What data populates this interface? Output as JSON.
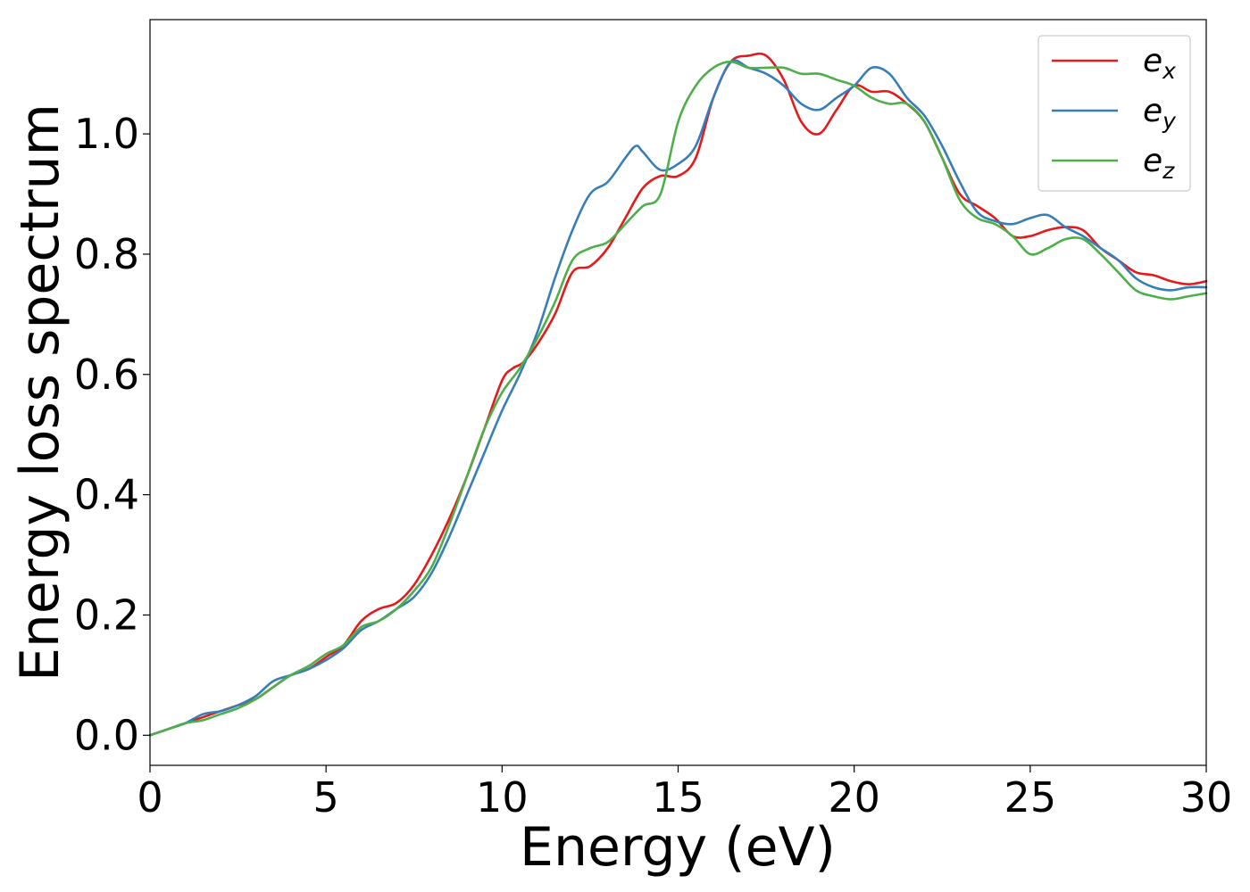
{
  "chart_data": {
    "type": "line",
    "title": "",
    "xlabel": "Energy (eV)",
    "ylabel": "Energy loss spectrum",
    "xlim": [
      0,
      30
    ],
    "ylim": [
      -0.05,
      1.19
    ],
    "xticks": [
      0,
      5,
      10,
      15,
      20,
      25,
      30
    ],
    "xtick_labels": [
      "0",
      "5",
      "10",
      "15",
      "20",
      "25",
      "30"
    ],
    "yticks": [
      0.0,
      0.2,
      0.4,
      0.6,
      0.8,
      1.0
    ],
    "ytick_labels": [
      "0.0",
      "0.2",
      "0.4",
      "0.6",
      "0.8",
      "1.0"
    ],
    "grid": false,
    "legend_position": "upper-right",
    "series": [
      {
        "name": "e_x",
        "legend_base": "e",
        "legend_sub": "x",
        "color": "#e41a1c",
        "x": [
          0,
          0.5,
          1,
          1.5,
          2,
          2.5,
          3,
          3.5,
          4,
          4.5,
          5,
          5.5,
          6,
          6.5,
          7,
          7.5,
          8,
          8.5,
          9,
          9.5,
          10,
          10.3,
          10.6,
          11,
          11.5,
          12,
          12.5,
          13,
          13.5,
          14,
          14.5,
          15,
          15.5,
          16,
          16.5,
          17,
          17.5,
          18,
          18.5,
          19,
          19.5,
          20,
          20.5,
          21,
          21.5,
          22,
          22.5,
          23,
          23.5,
          24,
          24.5,
          25,
          25.5,
          26,
          26.5,
          27,
          27.5,
          28,
          28.5,
          29,
          29.5,
          30
        ],
        "y": [
          0.0,
          0.01,
          0.02,
          0.03,
          0.04,
          0.05,
          0.06,
          0.08,
          0.1,
          0.11,
          0.13,
          0.15,
          0.19,
          0.21,
          0.22,
          0.25,
          0.3,
          0.36,
          0.43,
          0.51,
          0.59,
          0.61,
          0.62,
          0.65,
          0.7,
          0.77,
          0.78,
          0.81,
          0.86,
          0.91,
          0.93,
          0.93,
          0.96,
          1.06,
          1.12,
          1.13,
          1.13,
          1.09,
          1.02,
          1.0,
          1.04,
          1.08,
          1.07,
          1.07,
          1.05,
          1.02,
          0.96,
          0.9,
          0.88,
          0.86,
          0.83,
          0.83,
          0.84,
          0.845,
          0.84,
          0.81,
          0.79,
          0.77,
          0.765,
          0.755,
          0.75,
          0.755
        ]
      },
      {
        "name": "e_y",
        "legend_base": "e",
        "legend_sub": "y",
        "color": "#377eb8",
        "x": [
          0,
          0.5,
          1,
          1.5,
          2,
          2.5,
          3,
          3.5,
          4,
          4.5,
          5,
          5.5,
          6,
          6.5,
          7,
          7.5,
          8,
          8.5,
          9,
          9.5,
          10,
          10.5,
          11,
          11.5,
          12,
          12.5,
          13,
          13.5,
          13.8,
          14,
          14.5,
          15,
          15.5,
          16,
          16.5,
          17,
          17.5,
          18,
          18.5,
          19,
          19.5,
          20,
          20.5,
          21,
          21.5,
          22,
          22.5,
          23,
          23.5,
          24,
          24.5,
          25,
          25.5,
          26,
          26.5,
          27,
          27.5,
          28,
          28.5,
          29,
          29.5,
          30
        ],
        "y": [
          0.0,
          0.01,
          0.02,
          0.035,
          0.04,
          0.05,
          0.065,
          0.09,
          0.1,
          0.11,
          0.125,
          0.145,
          0.175,
          0.19,
          0.21,
          0.23,
          0.27,
          0.33,
          0.4,
          0.47,
          0.54,
          0.6,
          0.67,
          0.76,
          0.84,
          0.9,
          0.92,
          0.96,
          0.98,
          0.97,
          0.94,
          0.95,
          0.98,
          1.06,
          1.12,
          1.11,
          1.1,
          1.08,
          1.05,
          1.04,
          1.06,
          1.08,
          1.11,
          1.1,
          1.06,
          1.03,
          0.98,
          0.92,
          0.87,
          0.855,
          0.85,
          0.86,
          0.865,
          0.845,
          0.83,
          0.81,
          0.79,
          0.76,
          0.745,
          0.74,
          0.745,
          0.745
        ]
      },
      {
        "name": "e_z",
        "legend_base": "e",
        "legend_sub": "z",
        "color": "#4daf4a",
        "x": [
          0,
          0.5,
          1,
          1.5,
          2,
          2.5,
          3,
          3.5,
          4,
          4.5,
          5,
          5.5,
          6,
          6.5,
          7,
          7.5,
          8,
          8.5,
          9,
          9.5,
          10,
          10.5,
          11,
          11.5,
          12,
          12.5,
          13,
          13.5,
          14,
          14.5,
          15,
          15.5,
          16,
          16.5,
          17,
          17.5,
          18,
          18.5,
          19,
          19.5,
          20,
          20.5,
          21,
          21.5,
          22,
          22.5,
          23,
          23.5,
          24,
          24.5,
          25,
          25.5,
          26,
          26.5,
          27,
          27.5,
          28,
          28.5,
          29,
          29.5,
          30
        ],
        "y": [
          0.0,
          0.01,
          0.02,
          0.025,
          0.035,
          0.045,
          0.06,
          0.08,
          0.1,
          0.115,
          0.135,
          0.15,
          0.18,
          0.19,
          0.21,
          0.24,
          0.28,
          0.35,
          0.43,
          0.51,
          0.57,
          0.61,
          0.66,
          0.72,
          0.79,
          0.81,
          0.82,
          0.85,
          0.88,
          0.9,
          1.02,
          1.08,
          1.11,
          1.12,
          1.11,
          1.11,
          1.11,
          1.1,
          1.1,
          1.09,
          1.08,
          1.06,
          1.05,
          1.05,
          1.02,
          0.96,
          0.89,
          0.86,
          0.85,
          0.83,
          0.8,
          0.81,
          0.825,
          0.825,
          0.8,
          0.77,
          0.74,
          0.73,
          0.725,
          0.73,
          0.735
        ]
      }
    ]
  }
}
